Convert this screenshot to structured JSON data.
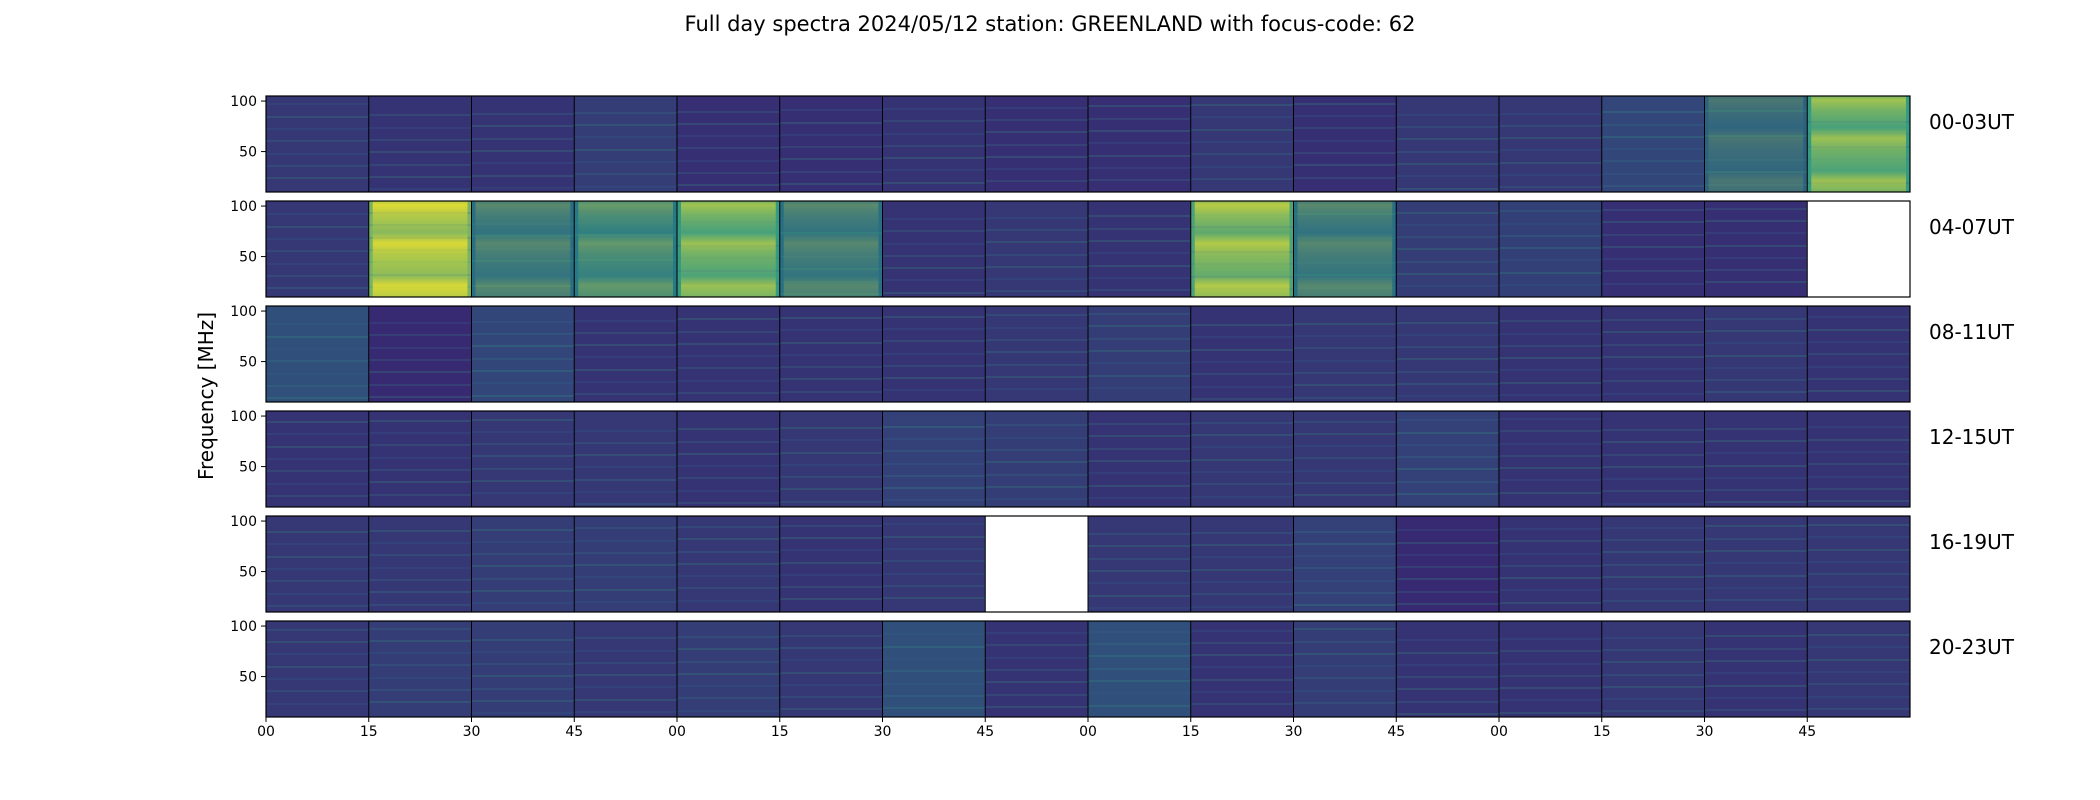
{
  "chart_data": {
    "type": "heatmap",
    "title": "Full day spectra 2024/05/12 station: GREENLAND with focus-code: 62",
    "ylabel": "Frequency [MHz]",
    "xlabel": "",
    "y_ticks": [
      "100",
      "50"
    ],
    "ylim": [
      10,
      105
    ],
    "x_tick_labels": [
      "00",
      "15",
      "30",
      "45",
      "00",
      "15",
      "30",
      "45",
      "00",
      "15",
      "30",
      "45",
      "00",
      "15",
      "30",
      "45"
    ],
    "colormap": "viridis",
    "colors": {
      "low": "#440154",
      "mid": "#21918c",
      "high": "#fde725",
      "empty": "#ffffff"
    },
    "rows": [
      {
        "label": "00-03UT",
        "panels": [
          0.12,
          0.1,
          0.1,
          0.14,
          0.08,
          0.08,
          0.1,
          0.08,
          0.08,
          0.12,
          0.08,
          0.12,
          0.12,
          0.18,
          0.3,
          0.55
        ],
        "missing": []
      },
      {
        "label": "04-07UT",
        "panels": [
          0.12,
          0.7,
          0.35,
          0.4,
          0.55,
          0.35,
          0.1,
          0.12,
          0.1,
          0.6,
          0.35,
          0.14,
          0.15,
          0.08,
          0.08,
          0
        ],
        "missing": [
          15
        ]
      },
      {
        "label": "08-11UT",
        "panels": [
          0.22,
          0.06,
          0.18,
          0.1,
          0.1,
          0.1,
          0.1,
          0.12,
          0.14,
          0.1,
          0.12,
          0.12,
          0.1,
          0.1,
          0.12,
          0.1
        ],
        "missing": []
      },
      {
        "label": "12-15UT",
        "panels": [
          0.1,
          0.1,
          0.12,
          0.12,
          0.1,
          0.12,
          0.16,
          0.14,
          0.1,
          0.12,
          0.12,
          0.16,
          0.1,
          0.1,
          0.1,
          0.1
        ],
        "missing": []
      },
      {
        "label": "16-19UT",
        "panels": [
          0.12,
          0.12,
          0.14,
          0.14,
          0.12,
          0.1,
          0.12,
          0,
          0.12,
          0.12,
          0.16,
          0.06,
          0.1,
          0.12,
          0.12,
          0.12
        ],
        "missing": [
          7
        ]
      },
      {
        "label": "20-23UT",
        "panels": [
          0.12,
          0.14,
          0.14,
          0.12,
          0.14,
          0.12,
          0.22,
          0.1,
          0.22,
          0.1,
          0.14,
          0.1,
          0.1,
          0.12,
          0.1,
          0.12
        ],
        "missing": []
      }
    ]
  }
}
